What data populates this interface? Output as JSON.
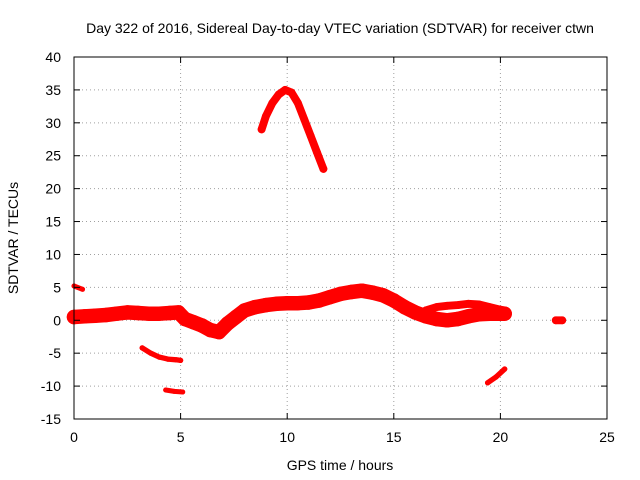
{
  "chart_data": {
    "type": "scatter",
    "title": "Day 322 of 2016, Sidereal Day-to-day VTEC variation (SDTVAR) for receiver ctwn",
    "xlabel": "GPS time / hours",
    "ylabel": "SDTVAR / TECUs",
    "xlim": [
      0,
      25
    ],
    "ylim": [
      -15,
      40
    ],
    "xticks": [
      "0",
      "5",
      "10",
      "15",
      "20",
      "25"
    ],
    "yticks": [
      "-15",
      "-10",
      "-5",
      "0",
      "5",
      "10",
      "15",
      "20",
      "25",
      "30",
      "35",
      "40"
    ],
    "grid": true,
    "color": "#ff0000",
    "series": [
      {
        "name": "main-band",
        "thickness": 2.2,
        "x": [
          0,
          0.5,
          1,
          1.5,
          2,
          2.5,
          3,
          3.5,
          4,
          4.5,
          4.9,
          5.2,
          5.6,
          6.0,
          6.4,
          6.8,
          7.2,
          7.6,
          8.0,
          8.5,
          9.0,
          9.5,
          10.0,
          10.5,
          11.0,
          11.5,
          12.0,
          12.5,
          13.0,
          13.5,
          14.0,
          14.5,
          15.0,
          15.5,
          16.0,
          16.5,
          17.0,
          17.5,
          18.0,
          18.5,
          19.0,
          19.5,
          20.0,
          20.2
        ],
        "y": [
          0.5,
          0.6,
          0.7,
          0.8,
          1.0,
          1.2,
          1.1,
          1.0,
          1.0,
          1.1,
          1.2,
          0.2,
          -0.3,
          -0.8,
          -1.5,
          -1.8,
          -0.5,
          0.5,
          1.5,
          2.0,
          2.3,
          2.5,
          2.6,
          2.6,
          2.7,
          3.0,
          3.5,
          4.0,
          4.3,
          4.5,
          4.2,
          3.8,
          3.0,
          2.0,
          1.2,
          0.6,
          0.2,
          0.0,
          0.2,
          0.6,
          0.9,
          1.0,
          1.0,
          1.0
        ]
      },
      {
        "name": "upper-band-late",
        "thickness": 1.2,
        "x": [
          16.5,
          17,
          17.5,
          18,
          18.5,
          19,
          19.5,
          20,
          20.2
        ],
        "y": [
          1.5,
          2.0,
          2.2,
          2.3,
          2.5,
          2.4,
          2.0,
          1.6,
          1.5
        ]
      },
      {
        "name": "arc-peak",
        "thickness": 1.2,
        "x": [
          8.8,
          9.0,
          9.3,
          9.6,
          9.9,
          10.2,
          10.5,
          10.8,
          11.1,
          11.4,
          11.7
        ],
        "y": [
          29.0,
          31.0,
          33.0,
          34.3,
          35.0,
          34.6,
          33.0,
          30.5,
          28.0,
          25.5,
          23.0
        ]
      },
      {
        "name": "seg-early",
        "thickness": 0.6,
        "x": [
          0.0,
          0.4
        ],
        "y": [
          5.2,
          4.7
        ]
      },
      {
        "name": "seg-minus5",
        "thickness": 0.8,
        "x": [
          3.2,
          3.6,
          4.0,
          4.4,
          4.8,
          5.0
        ],
        "y": [
          -4.2,
          -5.0,
          -5.6,
          -5.9,
          -6.0,
          -6.1
        ]
      },
      {
        "name": "seg-minus11",
        "thickness": 0.6,
        "x": [
          4.3,
          4.7,
          5.1
        ],
        "y": [
          -10.6,
          -10.8,
          -10.9
        ]
      },
      {
        "name": "seg-late-rise",
        "thickness": 0.8,
        "x": [
          19.4,
          19.8,
          20.2
        ],
        "y": [
          -9.5,
          -8.6,
          -7.4
        ]
      },
      {
        "name": "seg-23h",
        "thickness": 1.2,
        "x": [
          22.6,
          22.9
        ],
        "y": [
          0.0,
          0.0
        ]
      }
    ]
  }
}
